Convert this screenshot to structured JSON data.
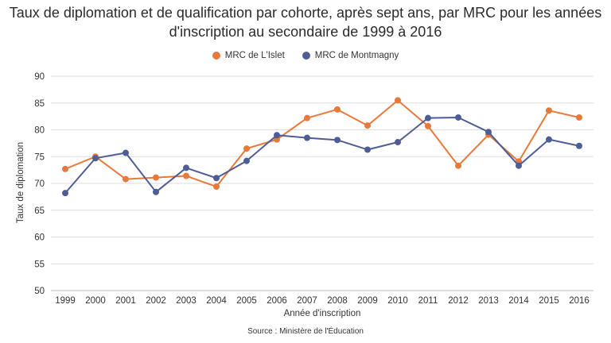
{
  "chart_data": {
    "type": "line",
    "title": "Taux de diplomation et de qualification par cohorte, après sept ans, par MRC pour les années d'inscription au secondaire de 1999 à 2016",
    "xlabel": "Année d'inscription",
    "ylabel": "Taux de diplomation",
    "ylim": [
      50,
      90
    ],
    "yticks": [
      "50",
      "55",
      "60",
      "65",
      "70",
      "75",
      "80",
      "85",
      "90"
    ],
    "categories": [
      "1999",
      "2000",
      "2001",
      "2002",
      "2003",
      "2004",
      "2005",
      "2006",
      "2007",
      "2008",
      "2009",
      "2010",
      "2011",
      "2012",
      "2013",
      "2014",
      "2015",
      "2016"
    ],
    "grid": true,
    "legend_position": "top-center",
    "series": [
      {
        "name": "MRC de L'Islet",
        "color": "#E8793A",
        "values": [
          72.7,
          75.0,
          70.8,
          71.1,
          71.4,
          69.4,
          76.5,
          78.2,
          82.2,
          83.8,
          80.8,
          85.5,
          80.7,
          73.3,
          79.1,
          74.1,
          83.6,
          82.3
        ]
      },
      {
        "name": "MRC de Montmagny",
        "color": "#4E5D96",
        "values": [
          68.2,
          74.7,
          75.7,
          68.4,
          72.9,
          71.0,
          74.2,
          79.0,
          78.5,
          78.1,
          76.3,
          77.7,
          82.2,
          82.3,
          79.6,
          73.3,
          78.2,
          77.0
        ]
      }
    ]
  },
  "source": "Source : Ministère de l'Éducation"
}
